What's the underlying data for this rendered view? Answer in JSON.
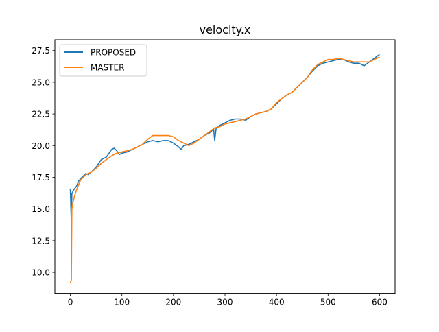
{
  "chart_data": {
    "type": "line",
    "title": "velocity.x",
    "xlabel": "",
    "ylabel": "",
    "xlim": [
      -30,
      630
    ],
    "ylim": [
      8.35,
      28.35
    ],
    "x_ticks": [
      0,
      100,
      200,
      300,
      400,
      500,
      600
    ],
    "y_ticks": [
      10.0,
      12.5,
      15.0,
      17.5,
      20.0,
      22.5,
      25.0,
      27.5
    ],
    "x_tick_labels": [
      "0",
      "100",
      "200",
      "300",
      "400",
      "500",
      "600"
    ],
    "y_tick_labels": [
      "10.0",
      "12.5",
      "15.0",
      "17.5",
      "20.0",
      "22.5",
      "25.0",
      "27.5"
    ],
    "grid": false,
    "legend_position": "upper-left",
    "series": [
      {
        "name": "PROPOSED",
        "color": "#1f77b4",
        "points": [
          [
            0,
            16.6
          ],
          [
            1,
            15.2
          ],
          [
            2,
            13.8
          ],
          [
            3,
            16.2
          ],
          [
            5,
            16.4
          ],
          [
            8,
            16.6
          ],
          [
            12,
            16.8
          ],
          [
            16,
            17.2
          ],
          [
            20,
            17.4
          ],
          [
            25,
            17.6
          ],
          [
            30,
            17.8
          ],
          [
            35,
            17.7
          ],
          [
            40,
            17.9
          ],
          [
            45,
            18.1
          ],
          [
            50,
            18.3
          ],
          [
            55,
            18.6
          ],
          [
            60,
            18.9
          ],
          [
            65,
            19.0
          ],
          [
            70,
            19.1
          ],
          [
            75,
            19.4
          ],
          [
            80,
            19.7
          ],
          [
            85,
            19.8
          ],
          [
            90,
            19.6
          ],
          [
            95,
            19.3
          ],
          [
            100,
            19.4
          ],
          [
            110,
            19.5
          ],
          [
            120,
            19.7
          ],
          [
            130,
            19.9
          ],
          [
            140,
            20.1
          ],
          [
            150,
            20.3
          ],
          [
            160,
            20.4
          ],
          [
            170,
            20.3
          ],
          [
            180,
            20.4
          ],
          [
            190,
            20.4
          ],
          [
            200,
            20.2
          ],
          [
            210,
            19.9
          ],
          [
            215,
            19.7
          ],
          [
            220,
            20.0
          ],
          [
            230,
            20.1
          ],
          [
            240,
            20.3
          ],
          [
            250,
            20.5
          ],
          [
            260,
            20.8
          ],
          [
            270,
            21.0
          ],
          [
            278,
            21.3
          ],
          [
            280,
            20.4
          ],
          [
            283,
            21.4
          ],
          [
            290,
            21.6
          ],
          [
            300,
            21.8
          ],
          [
            310,
            22.0
          ],
          [
            320,
            22.1
          ],
          [
            330,
            22.1
          ],
          [
            340,
            22.0
          ],
          [
            350,
            22.3
          ],
          [
            360,
            22.5
          ],
          [
            370,
            22.6
          ],
          [
            380,
            22.7
          ],
          [
            390,
            22.9
          ],
          [
            400,
            23.3
          ],
          [
            410,
            23.7
          ],
          [
            420,
            24.0
          ],
          [
            430,
            24.2
          ],
          [
            440,
            24.6
          ],
          [
            450,
            25.0
          ],
          [
            460,
            25.4
          ],
          [
            470,
            25.9
          ],
          [
            480,
            26.3
          ],
          [
            490,
            26.5
          ],
          [
            500,
            26.6
          ],
          [
            510,
            26.7
          ],
          [
            520,
            26.8
          ],
          [
            530,
            26.8
          ],
          [
            540,
            26.6
          ],
          [
            550,
            26.5
          ],
          [
            560,
            26.5
          ],
          [
            570,
            26.3
          ],
          [
            580,
            26.6
          ],
          [
            590,
            26.9
          ],
          [
            600,
            27.2
          ]
        ]
      },
      {
        "name": "MASTER",
        "color": "#ff7f0e",
        "points": [
          [
            0,
            9.2
          ],
          [
            2,
            9.4
          ],
          [
            3,
            15.0
          ],
          [
            5,
            15.5
          ],
          [
            8,
            16.0
          ],
          [
            12,
            16.5
          ],
          [
            16,
            16.9
          ],
          [
            20,
            17.3
          ],
          [
            25,
            17.5
          ],
          [
            30,
            17.7
          ],
          [
            40,
            17.9
          ],
          [
            50,
            18.2
          ],
          [
            60,
            18.6
          ],
          [
            70,
            18.9
          ],
          [
            80,
            19.2
          ],
          [
            90,
            19.4
          ],
          [
            100,
            19.5
          ],
          [
            110,
            19.6
          ],
          [
            120,
            19.7
          ],
          [
            130,
            19.9
          ],
          [
            140,
            20.1
          ],
          [
            150,
            20.5
          ],
          [
            160,
            20.8
          ],
          [
            170,
            20.8
          ],
          [
            180,
            20.8
          ],
          [
            190,
            20.8
          ],
          [
            200,
            20.7
          ],
          [
            210,
            20.4
          ],
          [
            220,
            20.2
          ],
          [
            230,
            20.0
          ],
          [
            240,
            20.2
          ],
          [
            250,
            20.5
          ],
          [
            260,
            20.8
          ],
          [
            270,
            21.1
          ],
          [
            280,
            21.4
          ],
          [
            290,
            21.5
          ],
          [
            300,
            21.7
          ],
          [
            310,
            21.8
          ],
          [
            320,
            21.9
          ],
          [
            330,
            22.0
          ],
          [
            340,
            22.1
          ],
          [
            350,
            22.3
          ],
          [
            360,
            22.5
          ],
          [
            370,
            22.6
          ],
          [
            380,
            22.7
          ],
          [
            390,
            22.9
          ],
          [
            400,
            23.4
          ],
          [
            410,
            23.7
          ],
          [
            420,
            24.0
          ],
          [
            430,
            24.2
          ],
          [
            440,
            24.6
          ],
          [
            450,
            25.0
          ],
          [
            460,
            25.4
          ],
          [
            470,
            26.0
          ],
          [
            480,
            26.4
          ],
          [
            490,
            26.6
          ],
          [
            500,
            26.8
          ],
          [
            510,
            26.8
          ],
          [
            520,
            26.9
          ],
          [
            530,
            26.8
          ],
          [
            540,
            26.7
          ],
          [
            550,
            26.6
          ],
          [
            560,
            26.6
          ],
          [
            570,
            26.6
          ],
          [
            580,
            26.6
          ],
          [
            590,
            26.8
          ],
          [
            600,
            27.0
          ]
        ]
      }
    ]
  }
}
